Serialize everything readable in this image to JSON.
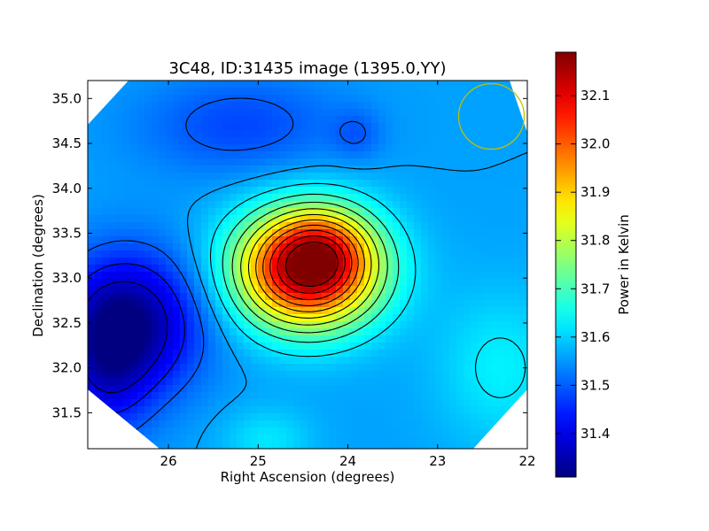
{
  "chart_data": {
    "type": "heatmap",
    "title": "3C48, ID:31435 image (1395.0,YY)",
    "xlabel": "Right Ascension (degrees)",
    "ylabel": "Declination (degrees)",
    "xlim": [
      26.9,
      22.0
    ],
    "ylim": [
      31.1,
      35.2
    ],
    "x_ticks": [
      "26",
      "25",
      "24",
      "23",
      "22"
    ],
    "x_tick_values": [
      26,
      25,
      24,
      23,
      22
    ],
    "y_ticks": [
      "31.5",
      "32.0",
      "32.5",
      "33.0",
      "33.5",
      "34.0",
      "34.5",
      "35.0"
    ],
    "y_tick_values": [
      31.5,
      32.0,
      32.5,
      33.0,
      33.5,
      34.0,
      34.5,
      35.0
    ],
    "colorbar": {
      "label": "Power in Kelvin",
      "range": [
        31.31,
        32.19
      ],
      "ticks": [
        "31.4",
        "31.5",
        "31.6",
        "31.7",
        "31.8",
        "31.9",
        "32.0",
        "32.1"
      ],
      "tick_values": [
        31.4,
        31.5,
        31.6,
        31.7,
        31.8,
        31.9,
        32.0,
        32.1
      ],
      "colormap": "jet"
    },
    "peak": {
      "ra": 24.5,
      "dec": 33.1,
      "value": 32.18
    },
    "minimum": {
      "ra": 26.4,
      "dec": 32.5,
      "value": 31.33
    },
    "beam_circle": {
      "ra": 22.4,
      "dec": 34.8,
      "color": "#bfbf00"
    },
    "grid": false,
    "contours": true
  }
}
